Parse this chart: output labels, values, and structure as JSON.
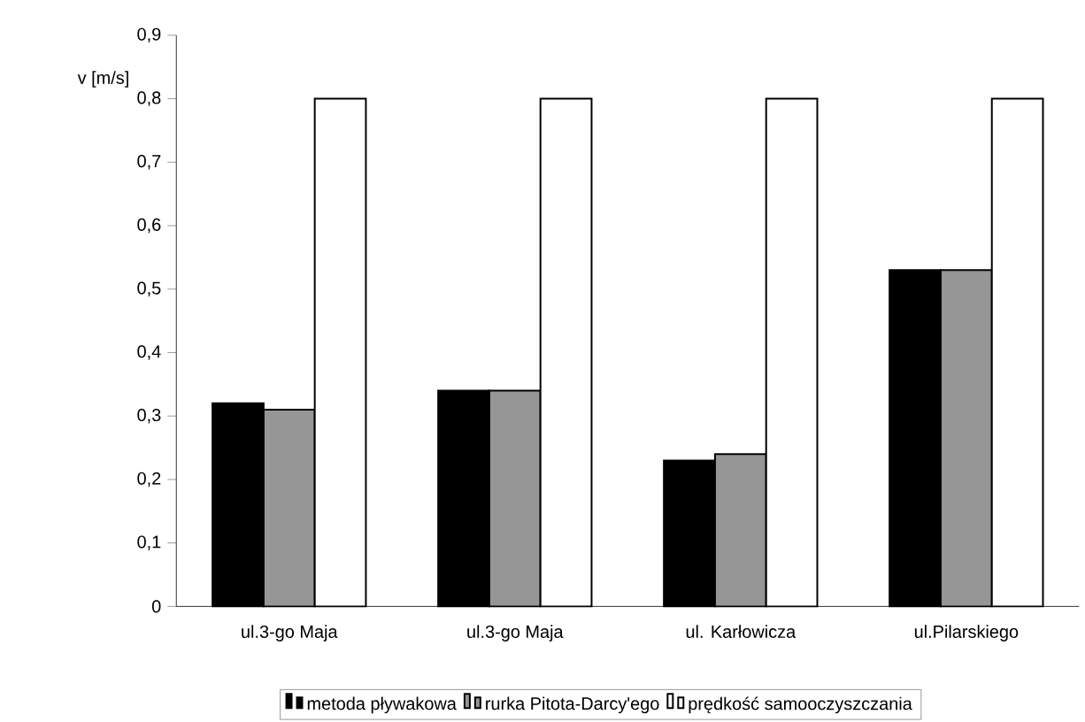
{
  "chart_data": {
    "type": "bar",
    "ylabel": "v [m/s]",
    "categories": [
      "ul.3-go Maja",
      "ul.3-go Maja",
      "ul. Karłowicza",
      "ul.Pilarskiego"
    ],
    "series": [
      {
        "name": "metoda pływakowa",
        "color": "#000000",
        "values": [
          0.32,
          0.34,
          0.23,
          0.53
        ]
      },
      {
        "name": "rurka Pitota-Darcy'ego",
        "color": "#969696",
        "values": [
          0.31,
          0.34,
          0.24,
          0.53
        ]
      },
      {
        "name": "prędkość samooczyszczania",
        "color": "#ffffff",
        "values": [
          0.8,
          0.8,
          0.8,
          0.8
        ]
      }
    ],
    "ylim": [
      0,
      0.9
    ],
    "yticks": [
      {
        "value": 0,
        "label": "0"
      },
      {
        "value": 0.1,
        "label": "0,1"
      },
      {
        "value": 0.2,
        "label": "0,2"
      },
      {
        "value": 0.3,
        "label": "0,3"
      },
      {
        "value": 0.4,
        "label": "0,4"
      },
      {
        "value": 0.5,
        "label": "0,5"
      },
      {
        "value": 0.6,
        "label": "0,6"
      },
      {
        "value": 0.7,
        "label": "0,7"
      },
      {
        "value": 0.8,
        "label": "0,8"
      },
      {
        "value": 0.9,
        "label": "0,9"
      }
    ],
    "grid": false,
    "legend": "bottom"
  }
}
